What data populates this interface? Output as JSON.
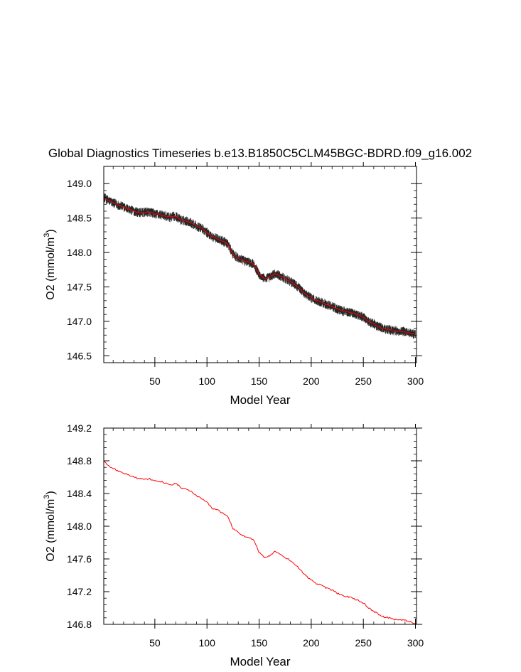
{
  "colors": {
    "annual_mean": "#ff0000",
    "monthly": "#000000",
    "axis": "#000000",
    "background": "#ffffff"
  },
  "chart_data": [
    {
      "type": "line",
      "title": "Global Diagnostics Timeseries b.e13.B1850C5CLM45BGC-BDRD.f09_g16.002",
      "xlabel": "Model Year",
      "ylabel_main": "O2 (mmol/m",
      "ylabel_sup": "3",
      "ylabel_close": ")",
      "xlim": [
        1,
        301
      ],
      "ylim": [
        146.4,
        149.25
      ],
      "xticks": [
        50,
        100,
        150,
        200,
        250,
        300
      ],
      "yticks": [
        146.5,
        147.0,
        147.5,
        148.0,
        148.5,
        149.0
      ],
      "ytick_labels": [
        "146.5",
        "147.0",
        "147.5",
        "148.0",
        "148.5",
        "149.0"
      ],
      "monthly_amplitude": 0.07,
      "series": [
        {
          "role": "monthly",
          "color": "#000000",
          "x": [
            1,
            5,
            10,
            15,
            20,
            25,
            30,
            35,
            40,
            45,
            50,
            55,
            60,
            65,
            70,
            75,
            80,
            85,
            90,
            95,
            100,
            105,
            110,
            115,
            120,
            125,
            130,
            135,
            140,
            145,
            150,
            155,
            160,
            165,
            170,
            175,
            180,
            185,
            190,
            195,
            200,
            205,
            210,
            215,
            220,
            225,
            230,
            235,
            240,
            245,
            250,
            255,
            260,
            265,
            270,
            275,
            280,
            285,
            290,
            295,
            300
          ],
          "y": [
            148.8,
            148.76,
            148.72,
            148.69,
            148.66,
            148.63,
            148.6,
            148.58,
            148.58,
            148.59,
            148.56,
            148.55,
            148.53,
            148.51,
            148.53,
            148.47,
            148.46,
            148.43,
            148.38,
            148.35,
            148.29,
            148.23,
            148.2,
            148.17,
            148.12,
            147.97,
            147.92,
            147.88,
            147.86,
            147.83,
            147.68,
            147.62,
            147.64,
            147.69,
            147.66,
            147.62,
            147.58,
            147.53,
            147.46,
            147.39,
            147.34,
            147.3,
            147.28,
            147.24,
            147.22,
            147.18,
            147.15,
            147.14,
            147.12,
            147.09,
            147.06,
            147.0,
            146.96,
            146.92,
            146.89,
            146.88,
            146.86,
            146.86,
            146.85,
            146.83,
            146.81
          ]
        },
        {
          "role": "annual_mean",
          "color": "#ff0000",
          "x": [
            1,
            5,
            10,
            15,
            20,
            25,
            30,
            35,
            40,
            45,
            50,
            55,
            60,
            65,
            70,
            75,
            80,
            85,
            90,
            95,
            100,
            105,
            110,
            115,
            120,
            125,
            130,
            135,
            140,
            145,
            150,
            155,
            160,
            165,
            170,
            175,
            180,
            185,
            190,
            195,
            200,
            205,
            210,
            215,
            220,
            225,
            230,
            235,
            240,
            245,
            250,
            255,
            260,
            265,
            270,
            275,
            280,
            285,
            290,
            295,
            300
          ],
          "y": [
            148.8,
            148.76,
            148.72,
            148.69,
            148.66,
            148.63,
            148.6,
            148.58,
            148.58,
            148.59,
            148.56,
            148.55,
            148.53,
            148.51,
            148.53,
            148.47,
            148.46,
            148.43,
            148.38,
            148.35,
            148.29,
            148.23,
            148.2,
            148.17,
            148.12,
            147.97,
            147.92,
            147.88,
            147.86,
            147.83,
            147.68,
            147.62,
            147.64,
            147.69,
            147.66,
            147.62,
            147.58,
            147.53,
            147.46,
            147.39,
            147.34,
            147.3,
            147.28,
            147.24,
            147.22,
            147.18,
            147.15,
            147.14,
            147.12,
            147.09,
            147.06,
            147.0,
            146.96,
            146.92,
            146.89,
            146.88,
            146.86,
            146.86,
            146.85,
            146.83,
            146.81
          ]
        }
      ]
    },
    {
      "type": "line",
      "title": "",
      "xlabel": "Model Year",
      "ylabel_main": "O2 (mmol/m",
      "ylabel_sup": "3",
      "ylabel_close": ")",
      "xlim": [
        1,
        301
      ],
      "ylim": [
        146.8,
        149.2
      ],
      "xticks": [
        50,
        100,
        150,
        200,
        250,
        300
      ],
      "yticks": [
        146.8,
        147.2,
        147.6,
        148.0,
        148.4,
        148.8,
        149.2
      ],
      "ytick_labels": [
        "146.8",
        "147.2",
        "147.6",
        "148.0",
        "148.4",
        "148.8",
        "149.2"
      ],
      "series": [
        {
          "role": "annual_mean",
          "color": "#ff0000",
          "x": [
            1,
            5,
            10,
            15,
            20,
            25,
            30,
            35,
            40,
            45,
            50,
            55,
            60,
            65,
            70,
            75,
            80,
            85,
            90,
            95,
            100,
            105,
            110,
            115,
            120,
            125,
            130,
            135,
            140,
            145,
            150,
            155,
            160,
            165,
            170,
            175,
            180,
            185,
            190,
            195,
            200,
            205,
            210,
            215,
            220,
            225,
            230,
            235,
            240,
            245,
            250,
            255,
            260,
            265,
            270,
            275,
            280,
            285,
            290,
            295,
            300
          ],
          "y": [
            148.8,
            148.74,
            148.71,
            148.67,
            148.65,
            148.63,
            148.6,
            148.58,
            148.57,
            148.58,
            148.55,
            148.55,
            148.53,
            148.5,
            148.53,
            148.47,
            148.45,
            148.42,
            148.37,
            148.34,
            148.29,
            148.22,
            148.2,
            148.16,
            148.12,
            147.97,
            147.92,
            147.88,
            147.86,
            147.83,
            147.68,
            147.62,
            147.64,
            147.69,
            147.66,
            147.62,
            147.58,
            147.53,
            147.46,
            147.39,
            147.34,
            147.3,
            147.28,
            147.24,
            147.22,
            147.18,
            147.15,
            147.14,
            147.12,
            147.09,
            147.06,
            147.0,
            146.96,
            146.92,
            146.89,
            146.88,
            146.86,
            146.86,
            146.85,
            146.83,
            146.81
          ]
        }
      ]
    }
  ]
}
